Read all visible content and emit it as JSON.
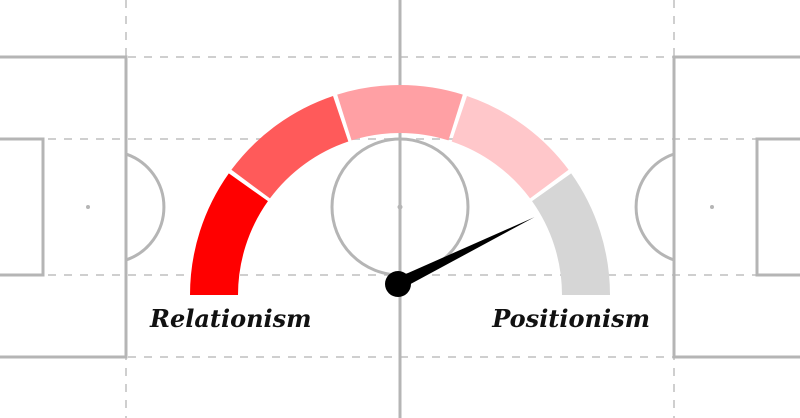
{
  "gauge": {
    "left_label": "Relationism",
    "right_label": "Positionism",
    "needle_value": 0.855,
    "segments": [
      {
        "color": "#ff0000"
      },
      {
        "color": "#ff5a5a"
      },
      {
        "color": "#ffa0a4"
      },
      {
        "color": "#ffc7ca"
      },
      {
        "color": "#d6d6d6"
      }
    ],
    "needle_color": "#000000"
  },
  "pitch": {
    "line_color": "#b5b5b5"
  }
}
